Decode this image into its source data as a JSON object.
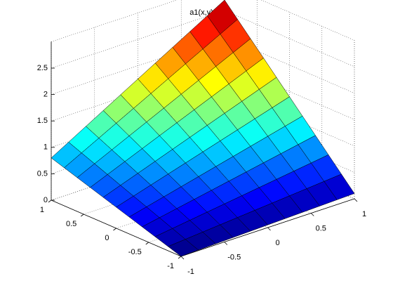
{
  "chart_data": {
    "type": "surface",
    "title": "a1(x,y)",
    "x": [
      -1,
      -0.8,
      -0.6,
      -0.4,
      -0.2,
      0,
      0.2,
      0.4,
      0.6,
      0.8,
      1
    ],
    "y": [
      -1,
      -0.8,
      -0.6,
      -0.4,
      -0.2,
      0,
      0.2,
      0.4,
      0.6,
      0.8,
      1
    ],
    "z": [
      [
        0,
        0.01,
        0.02,
        0.03,
        0.04,
        0.05,
        0.06,
        0.07,
        0.08,
        0.09,
        0.1
      ],
      [
        0.08,
        0.108,
        0.136,
        0.164,
        0.192,
        0.22,
        0.248,
        0.276,
        0.304,
        0.332,
        0.36
      ],
      [
        0.16,
        0.206,
        0.252,
        0.298,
        0.344,
        0.39,
        0.436,
        0.482,
        0.528,
        0.574,
        0.62
      ],
      [
        0.24,
        0.304,
        0.368,
        0.432,
        0.496,
        0.56,
        0.624,
        0.688,
        0.752,
        0.816,
        0.88
      ],
      [
        0.32,
        0.402,
        0.484,
        0.566,
        0.648,
        0.73,
        0.812,
        0.894,
        0.976,
        1.058,
        1.14
      ],
      [
        0.4,
        0.5,
        0.6,
        0.7,
        0.8,
        0.9,
        1.0,
        1.1,
        1.2,
        1.3,
        1.4
      ],
      [
        0.48,
        0.598,
        0.716,
        0.834,
        0.952,
        1.07,
        1.188,
        1.306,
        1.424,
        1.542,
        1.66
      ],
      [
        0.56,
        0.696,
        0.832,
        0.968,
        1.104,
        1.24,
        1.376,
        1.512,
        1.648,
        1.784,
        1.92
      ],
      [
        0.64,
        0.794,
        0.948,
        1.102,
        1.256,
        1.41,
        1.564,
        1.718,
        1.872,
        2.026,
        2.18
      ],
      [
        0.72,
        0.892,
        1.064,
        1.236,
        1.408,
        1.58,
        1.752,
        1.924,
        2.096,
        2.268,
        2.44
      ],
      [
        0.8,
        0.99,
        1.18,
        1.37,
        1.56,
        1.75,
        1.94,
        2.13,
        2.32,
        2.51,
        2.7
      ]
    ],
    "colormap": "jet",
    "xlim": [
      -1,
      1
    ],
    "xticks": [
      -1,
      -0.5,
      0,
      0.5,
      1
    ],
    "ylim": [
      -1,
      1
    ],
    "yticks": [
      -1,
      -0.5,
      0,
      0.5,
      1
    ],
    "zlim": [
      0,
      3
    ],
    "zticks": [
      0,
      0.5,
      1,
      1.5,
      2,
      2.5
    ],
    "grid": true
  }
}
